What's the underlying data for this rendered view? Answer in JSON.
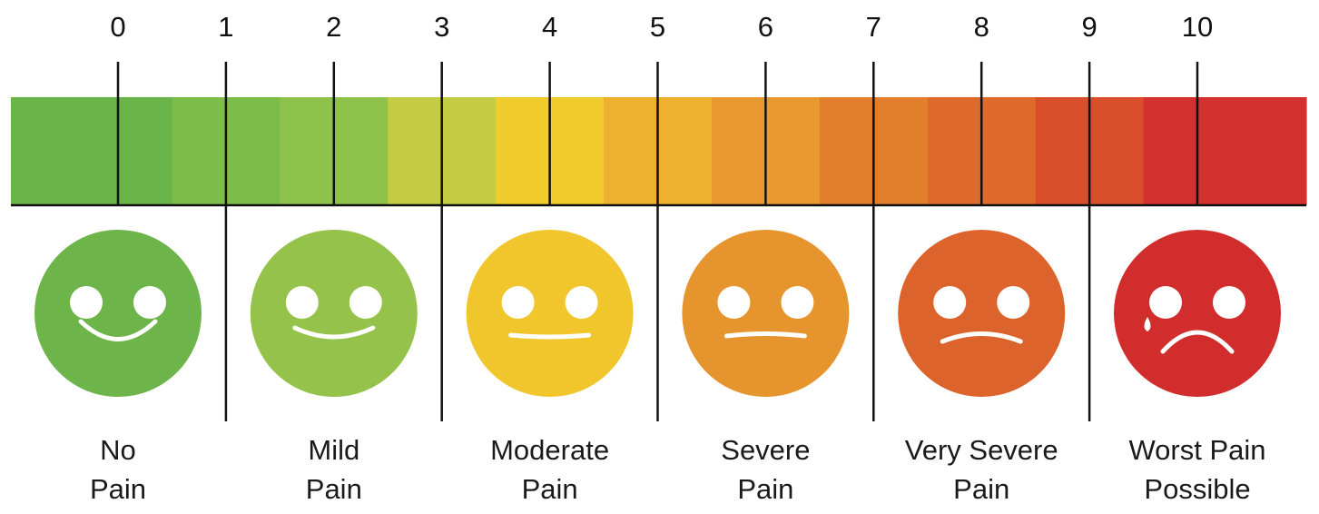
{
  "scale": {
    "numbers": [
      "0",
      "1",
      "2",
      "3",
      "4",
      "5",
      "6",
      "7",
      "8",
      "9",
      "10"
    ],
    "colors": [
      "#6ab54a",
      "#7cbd4a",
      "#8fc24b",
      "#c4cc44",
      "#f0cc2c",
      "#eeb02e",
      "#e8992f",
      "#e27f2c",
      "#de6b2b",
      "#d94f2c",
      "#d33030"
    ]
  },
  "faces": [
    {
      "name": "no-pain",
      "line1": "No",
      "line2": "Pain",
      "color": "#6db54a",
      "mouth": "big-smile",
      "tear": false
    },
    {
      "name": "mild-pain",
      "line1": "Mild",
      "line2": "Pain",
      "color": "#94c24a",
      "mouth": "smile",
      "tear": false
    },
    {
      "name": "moderate-pain",
      "line1": "Moderate",
      "line2": "Pain",
      "color": "#f0c62c",
      "mouth": "slight-smile",
      "tear": false
    },
    {
      "name": "severe-pain",
      "line1": "Severe",
      "line2": "Pain",
      "color": "#e6942e",
      "mouth": "flat",
      "tear": false
    },
    {
      "name": "very-severe-pain",
      "line1": "Very Severe",
      "line2": "Pain",
      "color": "#dc642c",
      "mouth": "slight-frown",
      "tear": false
    },
    {
      "name": "worst-pain-possible",
      "line1": "Worst Pain",
      "line2": "Possible",
      "color": "#d22d2d",
      "mouth": "frown",
      "tear": true
    }
  ]
}
